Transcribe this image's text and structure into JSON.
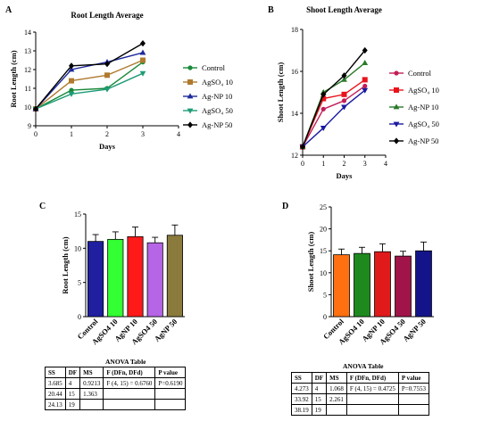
{
  "chart_data": [
    {
      "panel": "A",
      "type": "line",
      "title": "Root Length Average",
      "xlabel": "Days",
      "ylabel": "Root Length (cm)",
      "x": [
        0,
        1,
        2,
        3
      ],
      "xlim": [
        0,
        4
      ],
      "ylim": [
        9,
        14
      ],
      "xticks": [
        "0",
        "1",
        "2",
        "3",
        "4"
      ],
      "yticks": [
        "9",
        "10",
        "11",
        "12",
        "13",
        "14"
      ],
      "legend_position": "right",
      "series": [
        {
          "name": "Control",
          "color": "#1a8a3a",
          "marker": "circle",
          "values": [
            9.9,
            10.9,
            11.0,
            12.4
          ]
        },
        {
          "name": "AgSO₄ 10",
          "color": "#b07a2e",
          "marker": "square",
          "values": [
            9.9,
            11.4,
            11.7,
            12.5
          ]
        },
        {
          "name": "Ag-NP 10",
          "color": "#1d2a9c",
          "marker": "triangle",
          "values": [
            9.9,
            12.0,
            12.4,
            12.9
          ]
        },
        {
          "name": "AgSO₄ 50",
          "color": "#1f9c78",
          "marker": "tri-down",
          "values": [
            9.9,
            10.7,
            10.95,
            11.8
          ]
        },
        {
          "name": "Ag-NP 50",
          "color": "#000000",
          "marker": "diamond",
          "values": [
            9.9,
            12.2,
            12.3,
            13.4
          ]
        }
      ]
    },
    {
      "panel": "B",
      "type": "line",
      "title": "Shoot Length Average",
      "xlabel": "Days",
      "ylabel": "Shoot Length (cm)",
      "x": [
        0,
        1,
        2,
        3
      ],
      "xlim": [
        0,
        4
      ],
      "ylim": [
        12,
        18
      ],
      "xticks": [
        "0",
        "1",
        "2",
        "3",
        "4"
      ],
      "yticks": [
        "12",
        "14",
        "16",
        "18"
      ],
      "legend_position": "right",
      "series": [
        {
          "name": "Control",
          "color": "#c21e56",
          "marker": "circle",
          "values": [
            12.4,
            14.2,
            14.6,
            15.3
          ]
        },
        {
          "name": "AgSO₄ 10",
          "color": "#e8141c",
          "marker": "square",
          "values": [
            12.4,
            14.7,
            14.9,
            15.6
          ]
        },
        {
          "name": "Ag-NP 10",
          "color": "#2a7a2a",
          "marker": "triangle",
          "values": [
            12.4,
            15.0,
            15.6,
            16.4
          ]
        },
        {
          "name": "AgSO₄ 50",
          "color": "#1a1aa0",
          "marker": "tri-down",
          "values": [
            12.4,
            13.3,
            14.3,
            15.1
          ]
        },
        {
          "name": "Ag-NP 50",
          "color": "#000000",
          "marker": "diamond",
          "values": [
            12.4,
            14.9,
            15.8,
            17.0
          ]
        }
      ]
    },
    {
      "panel": "C",
      "type": "bar",
      "title": "",
      "xlabel": "",
      "ylabel": "Root Length (cm)",
      "categories": [
        "Control",
        "AgSO4 10",
        "AgNP 10",
        "AgSO4 50",
        "AgNP 50"
      ],
      "values": [
        11.0,
        11.3,
        11.7,
        10.8,
        11.9
      ],
      "errors": [
        1.0,
        1.1,
        1.4,
        0.8,
        1.5
      ],
      "colors": [
        "#1f1fa0",
        "#33ff33",
        "#ff1a1a",
        "#b565e6",
        "#8a7a3c"
      ],
      "ylim": [
        0,
        15
      ],
      "yticks": [
        "0",
        "5",
        "10",
        "15"
      ]
    },
    {
      "panel": "D",
      "type": "bar",
      "title": "",
      "xlabel": "",
      "ylabel": "Shoot Length (cm)",
      "categories": [
        "Control",
        "AgSO4 10",
        "AgNP 10",
        "AgSO4 50",
        "AgNP 50"
      ],
      "values": [
        14.1,
        14.4,
        14.8,
        13.8,
        15.0
      ],
      "errors": [
        1.3,
        1.4,
        1.8,
        1.1,
        2.0
      ],
      "colors": [
        "#ff7010",
        "#1e8a1e",
        "#e01a1a",
        "#a0144a",
        "#14148a"
      ],
      "ylim": [
        0,
        25
      ],
      "yticks": [
        "0",
        "5",
        "10",
        "15",
        "20",
        "25"
      ]
    }
  ],
  "tables": {
    "left": {
      "title": "ANOVA Table",
      "header": [
        "SS",
        "DF",
        "MS",
        "F (DFn, DFd)",
        "P value"
      ],
      "rows": [
        [
          "3.685",
          "4",
          "0.9213",
          "F (4, 15) = 0.6760",
          "P=0.6190"
        ],
        [
          "20.44",
          "15",
          "1.363",
          "",
          ""
        ],
        [
          "24.13",
          "19",
          "",
          "",
          ""
        ]
      ]
    },
    "right": {
      "title": "ANOVA Table",
      "header": [
        "SS",
        "DF",
        "MS",
        "F (DFn, DFd)",
        "P value"
      ],
      "rows": [
        [
          "4.273",
          "4",
          "1.068",
          "F (4, 15) = 0.4725",
          "P=0.7553"
        ],
        [
          "33.92",
          "15",
          "2.261",
          "",
          ""
        ],
        [
          "38.19",
          "19",
          "",
          "",
          ""
        ]
      ]
    }
  }
}
